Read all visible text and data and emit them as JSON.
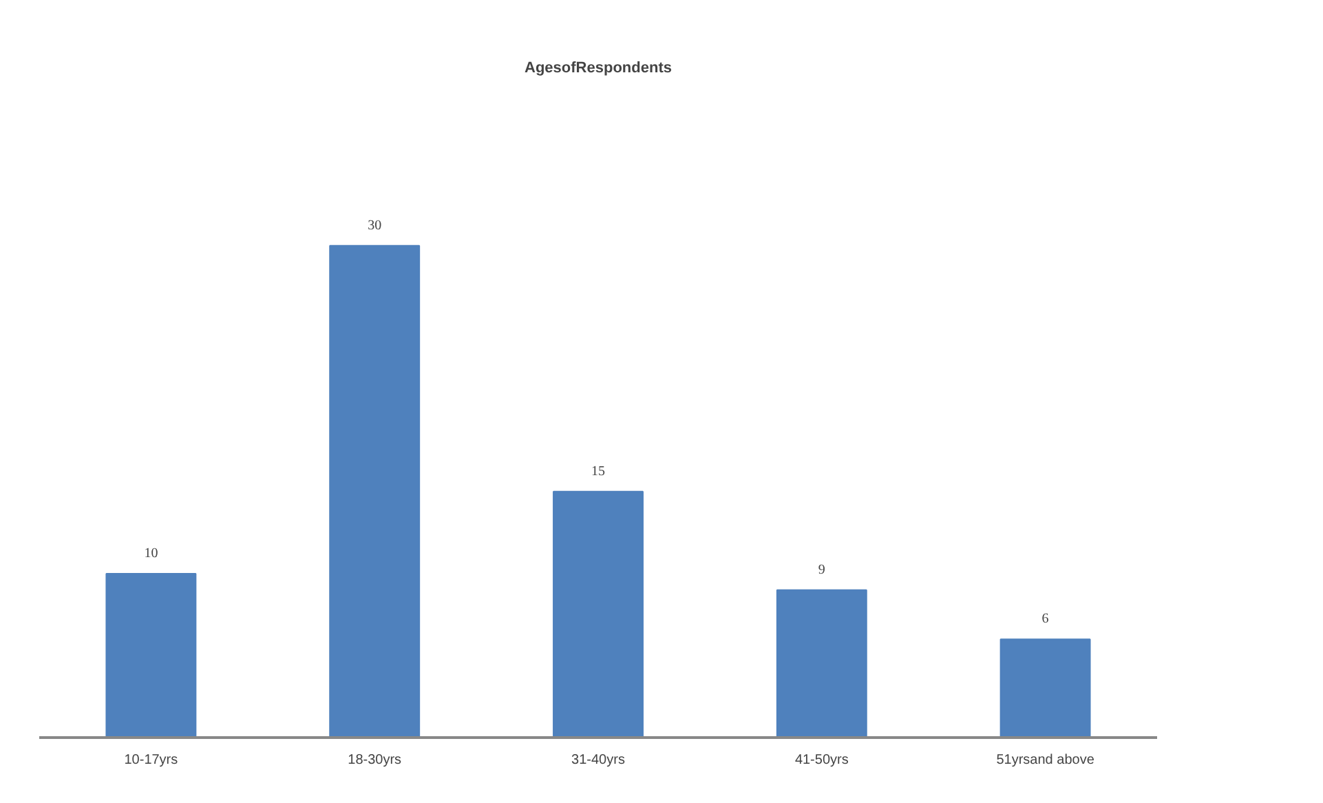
{
  "chart_data": {
    "type": "bar",
    "title": "AgesofRespondents",
    "categories": [
      "10-17yrs",
      "18-30yrs",
      "31-40yrs",
      "41-50yrs",
      "51yrsand above"
    ],
    "values": [
      10,
      30,
      15,
      9,
      6
    ],
    "color": "#4f81bd",
    "data_labels": true,
    "grid": false
  }
}
